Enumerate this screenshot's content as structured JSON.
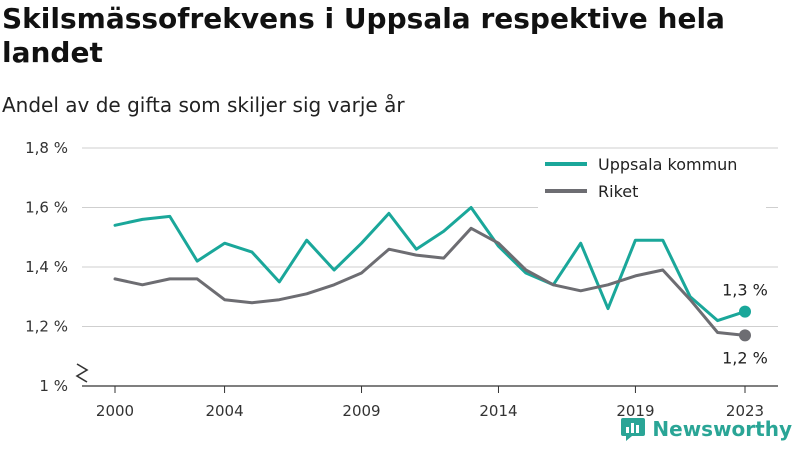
{
  "title": "Skilsmässofrekvens i Uppsala respektive hela landet",
  "subtitle": "Andel av de gifta som skiljer sig varje år",
  "brand": "Newsworthy",
  "colors": {
    "uppsala": "#1aa79a",
    "riket": "#6d6d72",
    "grid": "#cfcfcf",
    "axis": "#333333",
    "brand": "#2aa596"
  },
  "chart_data": {
    "type": "line",
    "x": [
      2000,
      2001,
      2002,
      2003,
      2004,
      2005,
      2006,
      2007,
      2008,
      2009,
      2010,
      2011,
      2012,
      2013,
      2014,
      2015,
      2016,
      2017,
      2018,
      2019,
      2020,
      2021,
      2022,
      2023
    ],
    "x_ticks": [
      2000,
      2004,
      2009,
      2014,
      2019,
      2023
    ],
    "x_tick_labels": [
      "2000",
      "2004",
      "2009",
      "2014",
      "2019",
      "2023"
    ],
    "ylim": [
      1.0,
      1.8
    ],
    "y_ticks": [
      1.0,
      1.2,
      1.4,
      1.6,
      1.8
    ],
    "y_tick_labels": [
      "1 %",
      "1,2 %",
      "1,4 %",
      "1,6 %",
      "1,8 %"
    ],
    "y_axis_break": true,
    "grid": true,
    "legend_position": "top-right",
    "series": [
      {
        "name": "Uppsala kommun",
        "color": "#1aa79a",
        "values": [
          1.54,
          1.56,
          1.57,
          1.42,
          1.48,
          1.45,
          1.35,
          1.49,
          1.39,
          1.48,
          1.58,
          1.46,
          1.52,
          1.6,
          1.47,
          1.38,
          1.34,
          1.48,
          1.26,
          1.49,
          1.49,
          1.3,
          1.22,
          1.25
        ],
        "end_label": "1,3 %"
      },
      {
        "name": "Riket",
        "color": "#6d6d72",
        "values": [
          1.36,
          1.34,
          1.36,
          1.36,
          1.29,
          1.28,
          1.29,
          1.31,
          1.34,
          1.38,
          1.46,
          1.44,
          1.43,
          1.53,
          1.48,
          1.39,
          1.34,
          1.32,
          1.34,
          1.37,
          1.39,
          1.29,
          1.18,
          1.17
        ],
        "end_label": "1,2 %"
      }
    ]
  }
}
